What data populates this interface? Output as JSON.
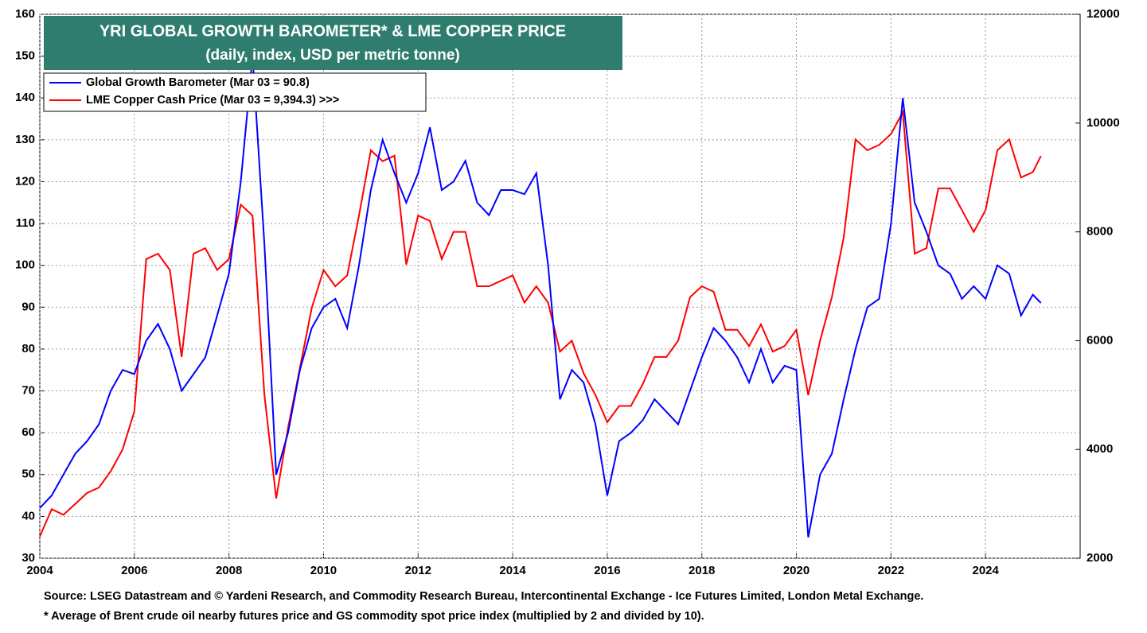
{
  "chart_data": {
    "type": "line",
    "title": "YRI GLOBAL GROWTH BAROMETER* & LME COPPER PRICE",
    "subtitle": "(daily, index, USD per metric tonne)",
    "source": "Source: LSEG Datastream and © Yardeni Research, and Commodity Research Bureau, Intercontinental Exchange - Ice Futures Limited, London Metal Exchange.",
    "note": "* Average of Brent crude oil nearby futures price and GS commodity spot price index (multiplied by 2 and divided by 10).",
    "x": [
      2004.0,
      2004.25,
      2004.5,
      2004.75,
      2005.0,
      2005.25,
      2005.5,
      2005.75,
      2006.0,
      2006.25,
      2006.5,
      2006.75,
      2007.0,
      2007.25,
      2007.5,
      2007.75,
      2008.0,
      2008.25,
      2008.5,
      2008.75,
      2009.0,
      2009.25,
      2009.5,
      2009.75,
      2010.0,
      2010.25,
      2010.5,
      2010.75,
      2011.0,
      2011.25,
      2011.5,
      2011.75,
      2012.0,
      2012.25,
      2012.5,
      2012.75,
      2013.0,
      2013.25,
      2013.5,
      2013.75,
      2014.0,
      2014.25,
      2014.5,
      2014.75,
      2015.0,
      2015.25,
      2015.5,
      2015.75,
      2016.0,
      2016.25,
      2016.5,
      2016.75,
      2017.0,
      2017.25,
      2017.5,
      2017.75,
      2018.0,
      2018.25,
      2018.5,
      2018.75,
      2019.0,
      2019.25,
      2019.5,
      2019.75,
      2020.0,
      2020.25,
      2020.5,
      2020.75,
      2021.0,
      2021.25,
      2021.5,
      2021.75,
      2022.0,
      2022.25,
      2022.5,
      2022.75,
      2023.0,
      2023.25,
      2023.5,
      2023.75,
      2024.0,
      2024.25,
      2024.5,
      2024.75,
      2025.0,
      2025.17
    ],
    "series": [
      {
        "name": "Global Growth Barometer (Mar 03 = 90.8)",
        "color": "#0000ff",
        "values": [
          42,
          45,
          50,
          55,
          58,
          62,
          70,
          75,
          74,
          82,
          86,
          80,
          70,
          74,
          78,
          88,
          98,
          120,
          150,
          105,
          50,
          60,
          75,
          85,
          90,
          92,
          85,
          100,
          118,
          130,
          122,
          115,
          122,
          133,
          118,
          120,
          125,
          115,
          112,
          118,
          118,
          117,
          122,
          100,
          68,
          75,
          72,
          62,
          45,
          58,
          60,
          63,
          68,
          65,
          62,
          70,
          78,
          85,
          82,
          78,
          72,
          80,
          72,
          76,
          75,
          35,
          50,
          55,
          68,
          80,
          90,
          92,
          110,
          140,
          115,
          108,
          100,
          98,
          92,
          95,
          92,
          100,
          98,
          88,
          93,
          91
        ]
      },
      {
        "name": "LME Copper Cash Price (Mar 03 = 9,394.3) >>>",
        "color": "#ff0000",
        "axis": "y2",
        "values": [
          2400,
          2900,
          2800,
          3000,
          3200,
          3300,
          3600,
          4000,
          4700,
          7500,
          7600,
          7300,
          5700,
          7600,
          7700,
          7300,
          7500,
          8500,
          8300,
          5000,
          3100,
          4400,
          5500,
          6600,
          7300,
          7000,
          7200,
          8300,
          9500,
          9300,
          9400,
          7400,
          8300,
          8200,
          7500,
          8000,
          8000,
          7000,
          7000,
          7100,
          7200,
          6700,
          7000,
          6700,
          5800,
          6000,
          5400,
          5000,
          4500,
          4800,
          4800,
          5200,
          5700,
          5700,
          6000,
          6800,
          7000,
          6900,
          6200,
          6200,
          5900,
          6300,
          5800,
          5900,
          6200,
          5000,
          6000,
          6800,
          7900,
          9700,
          9500,
          9600,
          9800,
          10200,
          7600,
          7700,
          8800,
          8800,
          8400,
          8000,
          8400,
          9500,
          9700,
          9000,
          9100,
          9394.3
        ]
      }
    ],
    "xlim": [
      2004,
      2026
    ],
    "xticks": [
      2004,
      2006,
      2008,
      2010,
      2012,
      2014,
      2016,
      2018,
      2020,
      2022,
      2024
    ],
    "ylim": [
      30,
      160
    ],
    "yticks": [
      30,
      40,
      50,
      60,
      70,
      80,
      90,
      100,
      110,
      120,
      130,
      140,
      150,
      160
    ],
    "y2lim": [
      2000,
      12000
    ],
    "y2ticks": [
      2000,
      4000,
      6000,
      8000,
      10000,
      12000
    ],
    "grid": true,
    "legend": "upper left"
  }
}
